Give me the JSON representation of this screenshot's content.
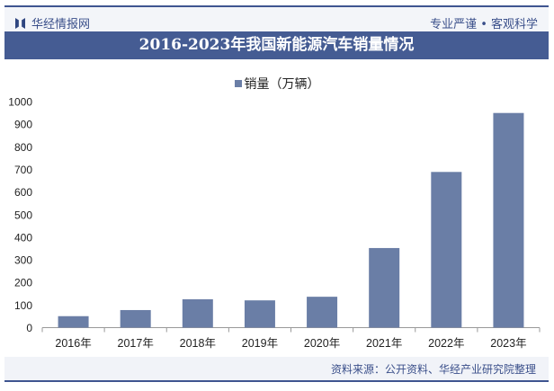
{
  "header": {
    "logo_text": "华经情报网",
    "slogan": "专业严谨 • 客观科学"
  },
  "footer": {
    "source": "资料来源：公开资料、华经产业研究院整理"
  },
  "colors": {
    "title_bar": "#455c93",
    "bar": "#6a7ea6",
    "brand": "#3a4f8a"
  },
  "chart_data": {
    "type": "bar",
    "title": "2016-2023年我国新能源汽车销量情况",
    "categories": [
      "2016年",
      "2017年",
      "2018年",
      "2019年",
      "2020年",
      "2021年",
      "2022年",
      "2023年"
    ],
    "series": [
      {
        "name": "销量（万辆）",
        "values": [
          50.7,
          77.7,
          125.6,
          120.6,
          136.6,
          352.1,
          688.7,
          949.5
        ]
      }
    ],
    "ylim": [
      0,
      1000
    ],
    "yticks": [
      0,
      100,
      200,
      300,
      400,
      500,
      600,
      700,
      800,
      900,
      1000
    ],
    "grid": false,
    "legend": "top-center"
  }
}
